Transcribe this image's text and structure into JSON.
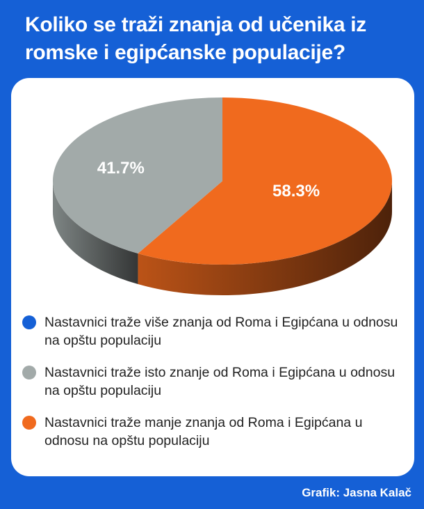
{
  "title": "Koliko se traži znanja od učenika iz romske i egipćanske populacije?",
  "credit": "Grafik: Jasna Kalač",
  "colors": {
    "frame": "#1560d6",
    "blue": "#1560d6",
    "gray": "#a2aaa9",
    "orange": "#f06a1e"
  },
  "chart_data": {
    "type": "pie",
    "style": "3d",
    "slices": [
      {
        "label": "41.7%",
        "value": 41.7,
        "color": "#a2aaa9",
        "legend_index": 1
      },
      {
        "label": "58.3%",
        "value": 58.3,
        "color": "#f06a1e",
        "legend_index": 2
      }
    ],
    "legend": [
      {
        "text": "Nastavnici traže više znanja od Roma i Egipćana u odnosu na opštu populaciju",
        "color": "#1560d6"
      },
      {
        "text": "Nastavnici traže isto znanje od Roma i Egipćana u odnosu na opštu populaciju",
        "color": "#a2aaa9"
      },
      {
        "text": "Nastavnici traže manje znanja od Roma i Egipćana u odnosu na opštu populaciju",
        "color": "#f06a1e"
      }
    ],
    "legend_position": "bottom"
  }
}
